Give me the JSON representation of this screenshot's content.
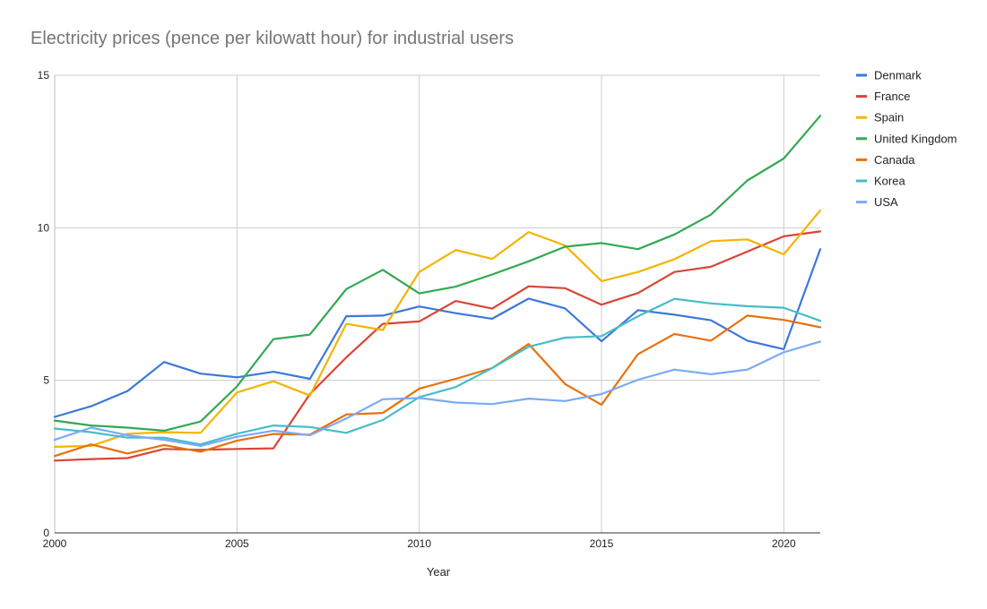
{
  "chart_data": {
    "type": "line",
    "title": "Electricity prices (pence per kilowatt hour) for industrial users",
    "xlabel": "Year",
    "ylabel": "",
    "xlim": [
      2000,
      2021
    ],
    "ylim": [
      0,
      15
    ],
    "x_ticks": [
      2000,
      2005,
      2010,
      2015,
      2020
    ],
    "y_ticks": [
      0,
      5,
      10,
      15
    ],
    "grid": true,
    "legend_position": "right",
    "x": [
      2000,
      2001,
      2002,
      2003,
      2004,
      2005,
      2006,
      2007,
      2008,
      2009,
      2010,
      2011,
      2012,
      2013,
      2014,
      2015,
      2016,
      2017,
      2018,
      2019,
      2020,
      2021
    ],
    "series": [
      {
        "name": "Denmark",
        "color": "#3c78d8",
        "values": [
          3.8,
          4.15,
          4.65,
          5.6,
          5.22,
          5.1,
          5.28,
          5.05,
          7.1,
          7.12,
          7.42,
          7.2,
          7.02,
          7.68,
          7.36,
          6.28,
          7.3,
          7.15,
          6.97,
          6.3,
          6.02,
          9.3
        ]
      },
      {
        "name": "France",
        "color": "#db4437",
        "values": [
          2.37,
          2.42,
          2.45,
          2.75,
          2.72,
          2.75,
          2.77,
          4.55,
          5.75,
          6.85,
          6.93,
          7.6,
          7.35,
          8.08,
          8.02,
          7.48,
          7.86,
          8.55,
          8.72,
          9.22,
          9.72,
          9.88
        ]
      },
      {
        "name": "Spain",
        "color": "#f4b400",
        "values": [
          2.82,
          2.85,
          3.25,
          3.3,
          3.28,
          4.6,
          4.97,
          4.5,
          6.85,
          6.65,
          8.55,
          9.27,
          8.98,
          9.86,
          9.42,
          8.25,
          8.55,
          8.97,
          9.56,
          9.62,
          9.13,
          10.57
        ]
      },
      {
        "name": "United Kingdom",
        "color": "#34a853",
        "values": [
          3.68,
          3.52,
          3.45,
          3.35,
          3.65,
          4.8,
          6.35,
          6.5,
          7.99,
          8.62,
          7.85,
          8.07,
          8.47,
          8.9,
          9.38,
          9.5,
          9.3,
          9.78,
          10.43,
          11.55,
          12.27,
          13.67
        ]
      },
      {
        "name": "Canada",
        "color": "#e8710a",
        "values": [
          2.52,
          2.9,
          2.6,
          2.88,
          2.66,
          3.02,
          3.24,
          3.22,
          3.88,
          3.93,
          4.73,
          5.05,
          5.4,
          6.19,
          4.88,
          4.2,
          5.86,
          6.52,
          6.3,
          7.12,
          6.98,
          6.74
        ]
      },
      {
        "name": "Korea",
        "color": "#46bdc6",
        "values": [
          3.42,
          3.3,
          3.12,
          3.12,
          2.9,
          3.25,
          3.52,
          3.47,
          3.28,
          3.7,
          4.45,
          4.78,
          5.4,
          6.1,
          6.4,
          6.45,
          7.1,
          7.67,
          7.52,
          7.43,
          7.38,
          6.95
        ]
      },
      {
        "name": "USA",
        "color": "#7baaf7",
        "values": [
          3.05,
          3.45,
          3.2,
          3.05,
          2.85,
          3.15,
          3.35,
          3.2,
          3.75,
          4.38,
          4.42,
          4.27,
          4.22,
          4.4,
          4.32,
          4.55,
          5.02,
          5.35,
          5.2,
          5.35,
          5.92,
          6.27
        ]
      }
    ]
  }
}
